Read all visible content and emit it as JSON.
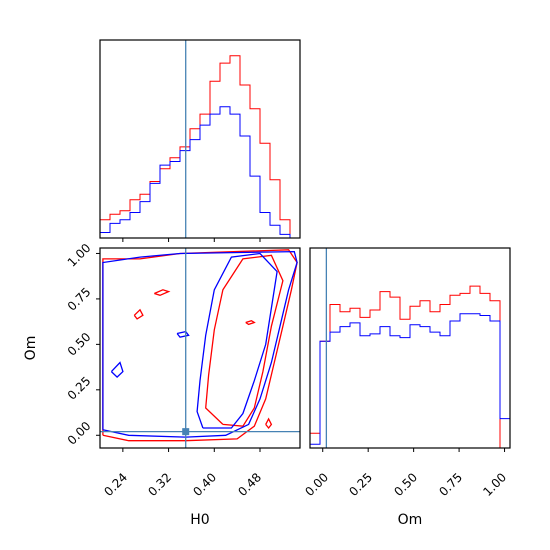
{
  "chart_data": {
    "type": "corner",
    "parameters": [
      "H0",
      "Om"
    ],
    "truths": {
      "H0": 0.35,
      "Om": 0.02
    },
    "colors": {
      "red": "#ff0000",
      "blue": "#0000ff",
      "truth": "#4682b4"
    },
    "axes": {
      "H0": {
        "xlabel": "H0",
        "range": [
          0.2,
          0.55
        ],
        "ticks": [
          0.24,
          0.32,
          0.4,
          0.48
        ],
        "tick_labels": [
          "0.24",
          "0.32",
          "0.40",
          "0.48"
        ]
      },
      "Om": {
        "xlabel": "Om",
        "ylabel": "Om",
        "range": [
          -0.07,
          1.03
        ],
        "ticks": [
          0.0,
          0.25,
          0.5,
          0.75,
          1.0
        ],
        "tick_labels": [
          "0.00",
          "0.25",
          "0.50",
          "0.75",
          "1.00"
        ]
      }
    },
    "histograms": {
      "H0": {
        "bin_edges": [
          0.2,
          0.2175,
          0.235,
          0.2525,
          0.27,
          0.2875,
          0.305,
          0.3225,
          0.34,
          0.3575,
          0.375,
          0.3925,
          0.41,
          0.4275,
          0.445,
          0.4625,
          0.48,
          0.4975,
          0.515,
          0.5325,
          0.55
        ],
        "series": [
          {
            "color": "red",
            "counts": [
              0.1,
              0.13,
              0.15,
              0.21,
              0.24,
              0.31,
              0.38,
              0.44,
              0.5,
              0.6,
              0.68,
              0.86,
              0.96,
              1.0,
              0.84,
              0.71,
              0.52,
              0.32,
              0.1,
              0.0
            ]
          },
          {
            "color": "blue",
            "counts": [
              0.03,
              0.08,
              0.1,
              0.14,
              0.2,
              0.3,
              0.4,
              0.42,
              0.48,
              0.54,
              0.62,
              0.68,
              0.72,
              0.68,
              0.56,
              0.34,
              0.14,
              0.07,
              0.02,
              0.0
            ]
          }
        ]
      },
      "Om": {
        "bin_edges": [
          -0.07,
          -0.015,
          0.04,
          0.095,
          0.15,
          0.205,
          0.26,
          0.315,
          0.37,
          0.425,
          0.48,
          0.535,
          0.59,
          0.645,
          0.7,
          0.755,
          0.81,
          0.865,
          0.92,
          0.975,
          1.03
        ],
        "series": [
          {
            "color": "red",
            "counts": [
              0.08,
              0.58,
              0.78,
              0.74,
              0.76,
              0.71,
              0.75,
              0.85,
              0.82,
              0.7,
              0.77,
              0.8,
              0.74,
              0.78,
              0.83,
              0.84,
              0.88,
              0.84,
              0.8,
              0.0
            ]
          },
          {
            "color": "blue",
            "counts": [
              0.02,
              0.58,
              0.63,
              0.66,
              0.68,
              0.61,
              0.62,
              0.66,
              0.61,
              0.6,
              0.67,
              0.66,
              0.63,
              0.61,
              0.69,
              0.73,
              0.73,
              0.72,
              0.69,
              0.16
            ]
          }
        ]
      }
    },
    "contours_H0_Om": [
      {
        "color": "red",
        "level": "outer",
        "points": [
          [
            0.205,
            0.0
          ],
          [
            0.205,
            0.97
          ],
          [
            0.27,
            0.97
          ],
          [
            0.34,
            1.0
          ],
          [
            0.53,
            1.02
          ],
          [
            0.545,
            0.95
          ],
          [
            0.535,
            0.8
          ],
          [
            0.52,
            0.6
          ],
          [
            0.505,
            0.4
          ],
          [
            0.49,
            0.2
          ],
          [
            0.47,
            0.05
          ],
          [
            0.44,
            -0.02
          ],
          [
            0.35,
            -0.03
          ],
          [
            0.25,
            -0.03
          ],
          [
            0.205,
            0.0
          ]
        ]
      },
      {
        "color": "red",
        "level": "inner",
        "points": [
          [
            0.415,
            0.06
          ],
          [
            0.385,
            0.15
          ],
          [
            0.39,
            0.33
          ],
          [
            0.4,
            0.58
          ],
          [
            0.415,
            0.8
          ],
          [
            0.45,
            0.97
          ],
          [
            0.5,
            0.99
          ],
          [
            0.52,
            0.85
          ],
          [
            0.5,
            0.6
          ],
          [
            0.485,
            0.35
          ],
          [
            0.47,
            0.15
          ],
          [
            0.45,
            0.05
          ],
          [
            0.415,
            0.06
          ]
        ]
      },
      {
        "color": "blue",
        "level": "outer",
        "points": [
          [
            0.205,
            0.03
          ],
          [
            0.205,
            0.95
          ],
          [
            0.27,
            0.98
          ],
          [
            0.34,
            1.0
          ],
          [
            0.54,
            1.01
          ],
          [
            0.545,
            0.95
          ],
          [
            0.53,
            0.8
          ],
          [
            0.515,
            0.6
          ],
          [
            0.5,
            0.4
          ],
          [
            0.48,
            0.2
          ],
          [
            0.46,
            0.06
          ],
          [
            0.42,
            0.0
          ],
          [
            0.35,
            -0.01
          ],
          [
            0.25,
            0.0
          ],
          [
            0.205,
            0.03
          ]
        ]
      },
      {
        "color": "blue",
        "level": "inner",
        "points": [
          [
            0.38,
            0.04
          ],
          [
            0.37,
            0.13
          ],
          [
            0.375,
            0.3
          ],
          [
            0.385,
            0.55
          ],
          [
            0.4,
            0.8
          ],
          [
            0.43,
            0.98
          ],
          [
            0.48,
            1.0
          ],
          [
            0.51,
            0.9
          ],
          [
            0.5,
            0.7
          ],
          [
            0.49,
            0.5
          ],
          [
            0.47,
            0.3
          ],
          [
            0.45,
            0.12
          ],
          [
            0.43,
            0.04
          ],
          [
            0.38,
            0.04
          ]
        ]
      },
      {
        "color": "red",
        "level": "island",
        "points": [
          [
            0.295,
            0.78
          ],
          [
            0.31,
            0.8
          ],
          [
            0.32,
            0.79
          ],
          [
            0.305,
            0.77
          ],
          [
            0.295,
            0.78
          ]
        ]
      },
      {
        "color": "red",
        "level": "island",
        "points": [
          [
            0.26,
            0.66
          ],
          [
            0.27,
            0.69
          ],
          [
            0.275,
            0.66
          ],
          [
            0.265,
            0.64
          ],
          [
            0.26,
            0.66
          ]
        ]
      },
      {
        "color": "red",
        "level": "island",
        "points": [
          [
            0.455,
            0.62
          ],
          [
            0.465,
            0.63
          ],
          [
            0.47,
            0.62
          ],
          [
            0.46,
            0.61
          ],
          [
            0.455,
            0.62
          ]
        ]
      },
      {
        "color": "red",
        "level": "island",
        "points": [
          [
            0.49,
            0.06
          ],
          [
            0.495,
            0.09
          ],
          [
            0.5,
            0.06
          ],
          [
            0.495,
            0.04
          ],
          [
            0.49,
            0.06
          ]
        ]
      },
      {
        "color": "blue",
        "level": "island",
        "points": [
          [
            0.22,
            0.35
          ],
          [
            0.235,
            0.4
          ],
          [
            0.24,
            0.35
          ],
          [
            0.23,
            0.32
          ],
          [
            0.22,
            0.35
          ]
        ]
      },
      {
        "color": "blue",
        "level": "island",
        "points": [
          [
            0.335,
            0.56
          ],
          [
            0.35,
            0.57
          ],
          [
            0.355,
            0.55
          ],
          [
            0.34,
            0.54
          ],
          [
            0.335,
            0.56
          ]
        ]
      }
    ]
  }
}
